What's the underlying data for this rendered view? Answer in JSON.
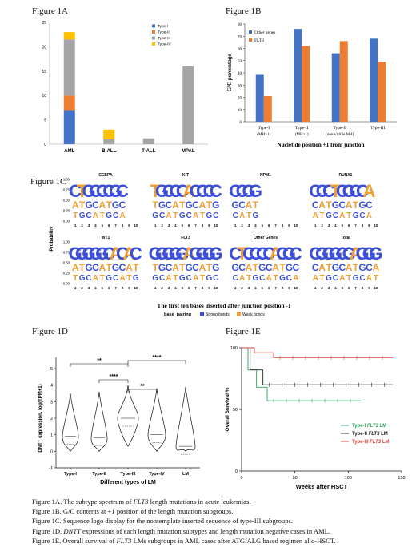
{
  "labels": {
    "fig1a": "Figure 1A",
    "fig1b": "Figure 1B",
    "fig1c": "Figure 1C",
    "fig1d": "Figure 1D",
    "fig1e": "Figure 1E"
  },
  "chart_data": [
    {
      "id": "1A",
      "type": "bar",
      "stacked": true,
      "categories": [
        "AML",
        "B-ALL",
        "T-ALL",
        "MPAL"
      ],
      "series": [
        {
          "name": "Type-I",
          "color": "#4472c4",
          "values": [
            7,
            0,
            0,
            0
          ]
        },
        {
          "name": "Type-II",
          "color": "#ed7d31",
          "values": [
            3,
            0,
            0,
            0
          ]
        },
        {
          "name": "Type-III",
          "color": "#a5a5a5",
          "values": [
            11.5,
            1,
            1.2,
            16
          ]
        },
        {
          "name": "Type-IV",
          "color": "#ffc000",
          "values": [
            1.5,
            2,
            0,
            0
          ]
        }
      ],
      "yticks": [
        "0",
        "5",
        "10",
        "15",
        "20",
        "25"
      ],
      "ylim": [
        0,
        25
      ],
      "legend": "top-right"
    },
    {
      "id": "1B",
      "type": "bar",
      "categories": [
        "Type-I (MH>1)",
        "Type-II (MH>1)",
        "Type-II (non-visible MH)",
        "Type-III"
      ],
      "category_lines": [
        [
          "Type-I",
          "(MH>1)"
        ],
        [
          "Type-II",
          "(MH>1)"
        ],
        [
          "Type-II",
          "(non-visible MH)"
        ],
        [
          "Type-III",
          ""
        ]
      ],
      "series": [
        {
          "name": "Other genes",
          "color": "#4472c4",
          "values": [
            39,
            76,
            56,
            68
          ]
        },
        {
          "name": "FLT3",
          "color": "#ed7d31",
          "values": [
            21,
            62,
            66,
            49
          ]
        }
      ],
      "yticks": [
        "0",
        "10",
        "20",
        "30",
        "40",
        "50",
        "60",
        "70",
        "80"
      ],
      "ylim": [
        0,
        80
      ],
      "ylabel": "G/C percentage",
      "xlabel": "Nucletide position +1 from junction",
      "legend": "top-left"
    },
    {
      "id": "1C",
      "type": "table",
      "panels": [
        {
          "title": "CEBPA",
          "seq": "CTGCCCGC"
        },
        {
          "title": "KIT",
          "seq": "TGCCCACCCC"
        },
        {
          "title": "NPM1",
          "seq": "CCGG"
        },
        {
          "title": "RUNX1",
          "seq": "CCCTCGCCA"
        },
        {
          "title": "WT1",
          "seq": "GGGGGCACAC"
        },
        {
          "title": "FLT3",
          "seq": "GGGGGAGGGG"
        },
        {
          "title": "Other Genes",
          "seq": "CTCCCCACGC"
        },
        {
          "title": "Total",
          "seq": "CGGGCGAGGG"
        }
      ],
      "ylabel": "Probability",
      "yticks": [
        "0.00",
        "0.25",
        "0.50",
        "0.75",
        "1.00"
      ],
      "positions": [
        "1",
        "2",
        "3",
        "4",
        "5",
        "6",
        "7",
        "8",
        "9",
        "10"
      ],
      "xlabel": "The first ten bases inserted after junction position -1",
      "legend_title": "base_pairing",
      "legend_items": [
        {
          "name": "Strong bonds",
          "color": "#3b4fd8"
        },
        {
          "name": "Weak bonds",
          "color": "#f0a030"
        }
      ]
    },
    {
      "id": "1D",
      "type": "violin",
      "categories": [
        "Type-I",
        "Type-II",
        "Type-III",
        "Type-IV",
        "LM"
      ],
      "yticks": [
        "-1",
        "0",
        "1",
        "2",
        "3",
        "4",
        "5"
      ],
      "ylim": [
        -1,
        5
      ],
      "ylabel": "DNTT expression, log(TPM+1)",
      "xlabel": "Different types of LM",
      "significance": [
        {
          "from": "Type-I",
          "to": "Type-III",
          "label": "**"
        },
        {
          "from": "Type-II",
          "to": "Type-III",
          "label": "****"
        },
        {
          "from": "Type-III",
          "to": "LM",
          "label": "****"
        },
        {
          "from": "Type-III",
          "to": "Type-IV",
          "label": "**"
        }
      ]
    },
    {
      "id": "1E",
      "type": "line",
      "xlabel": "Weeks after HSCT",
      "ylabel": "Overal Survival %",
      "xticks": [
        "0",
        "50",
        "100",
        "150"
      ],
      "yticks": [
        "0",
        "50",
        "100"
      ],
      "xlim": [
        0,
        150
      ],
      "ylim": [
        0,
        100
      ],
      "series": [
        {
          "name_prefix": "Type-I ",
          "name_gene": "FLT3",
          "name_suffix": " LM",
          "color": "#2e9e5c",
          "x": [
            0,
            6,
            6,
            14,
            14,
            24,
            24,
            112
          ],
          "y": [
            100,
            100,
            82,
            82,
            68,
            68,
            57,
            57
          ]
        },
        {
          "name_prefix": "Type-II ",
          "name_gene": "FLT3",
          "name_suffix": " LM",
          "color": "#222222",
          "x": [
            0,
            8,
            8,
            20,
            20,
            142
          ],
          "y": [
            100,
            100,
            82,
            82,
            70,
            70
          ]
        },
        {
          "name_prefix": "Type-III ",
          "name_gene": "FLT3",
          "name_suffix": " LM",
          "color": "#d9463b",
          "x": [
            0,
            12,
            12,
            30,
            30,
            142
          ],
          "y": [
            100,
            100,
            96,
            96,
            92,
            92
          ]
        }
      ]
    }
  ],
  "captions": [
    {
      "pre": "Figure 1A. The subtype spectrum of ",
      "gene": "FLT3",
      "post": " length mutations in acute leukemias."
    },
    {
      "pre": "Figure 1B. G/C contents at +1 position of the length mutation subgroups.",
      "gene": "",
      "post": ""
    },
    {
      "pre": "Figure 1C. Sequence logo display for the nontemplate inserted sequence of type-III subgroups.",
      "gene": "",
      "post": ""
    },
    {
      "pre": "Figure 1D. ",
      "gene": "DNTT",
      "post": " expressions of each length mutation subtypes and length mutation negative cases in AML."
    },
    {
      "pre": "Figure 1E. Overall survival of ",
      "gene": "FLT3",
      "post": " LMs subgroups in AML cases after ATG/ALG based regimen allo-HSCT."
    }
  ]
}
